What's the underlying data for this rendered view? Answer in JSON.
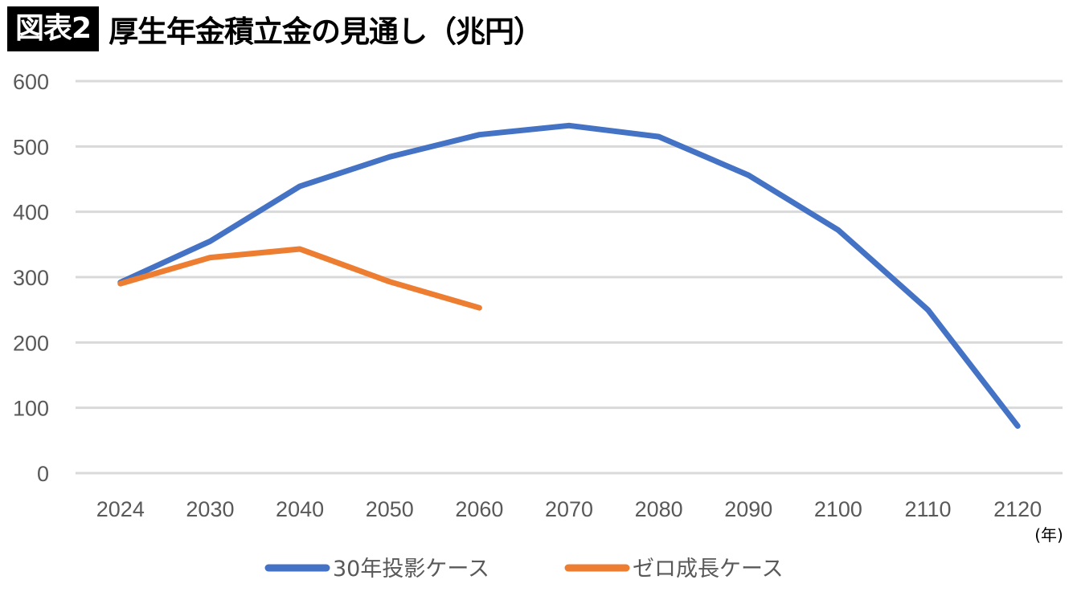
{
  "header": {
    "badge": "図表2",
    "title": "厚生年金積立金の見通し（兆円）"
  },
  "chart_data": {
    "type": "line",
    "title": "厚生年金積立金の見通し（兆円）",
    "xlabel": "(年)",
    "ylabel": "兆円",
    "ylim": [
      0,
      600
    ],
    "yticks": [
      0,
      100,
      200,
      300,
      400,
      500,
      600
    ],
    "grid": true,
    "legend_position": "bottom",
    "categories": [
      "2024",
      "2030",
      "2040",
      "2050",
      "2060",
      "2070",
      "2080",
      "2090",
      "2100",
      "2110",
      "2120"
    ],
    "series": [
      {
        "name": "30年投影ケース",
        "color": "#4472C4",
        "values": [
          292,
          355,
          439,
          484,
          518,
          532,
          515,
          456,
          372,
          250,
          72
        ]
      },
      {
        "name": "ゼロ成長ケース",
        "color": "#ED7D31",
        "values": [
          290,
          330,
          343,
          293,
          253,
          null,
          null,
          null,
          null,
          null,
          null
        ]
      }
    ]
  }
}
